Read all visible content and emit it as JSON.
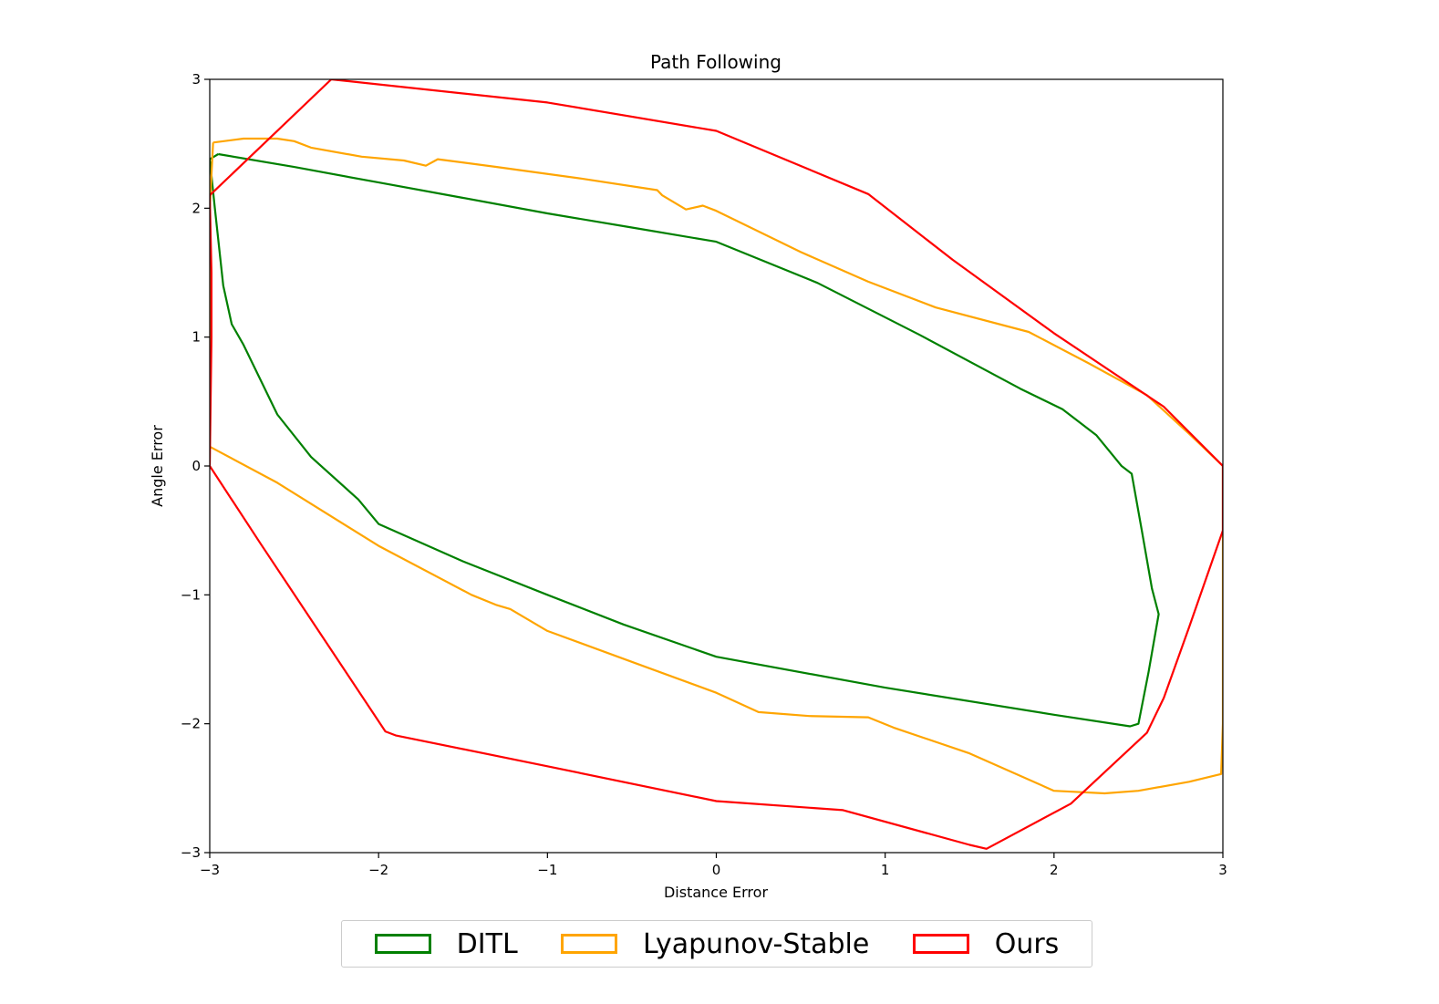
{
  "chart_data": {
    "type": "line",
    "title": "Path Following",
    "xlabel": "Distance Error",
    "ylabel": "Angle Error",
    "xlim": [
      -3,
      3
    ],
    "ylim": [
      -3,
      3
    ],
    "xticks": [
      -3,
      -2,
      -1,
      0,
      1,
      2,
      3
    ],
    "yticks": [
      -3,
      -2,
      -1,
      0,
      1,
      2,
      3
    ],
    "xtick_labels": [
      "−3",
      "−2",
      "−1",
      "0",
      "1",
      "2",
      "3"
    ],
    "ytick_labels": [
      "−3",
      "−2",
      "−1",
      "0",
      "1",
      "2",
      "3"
    ],
    "grid": false,
    "legend_position": "bottom-center",
    "series": [
      {
        "name": "DITL",
        "color": "#008000",
        "points": [
          [
            -2.95,
            2.42
          ],
          [
            -2.5,
            2.32
          ],
          [
            -2.0,
            2.2
          ],
          [
            -1.5,
            2.08
          ],
          [
            -1.0,
            1.96
          ],
          [
            -0.5,
            1.85
          ],
          [
            0.0,
            1.74
          ],
          [
            0.6,
            1.42
          ],
          [
            1.2,
            1.02
          ],
          [
            1.8,
            0.6
          ],
          [
            2.05,
            0.44
          ],
          [
            2.25,
            0.24
          ],
          [
            2.4,
            0.0
          ],
          [
            2.46,
            -0.06
          ],
          [
            2.52,
            -0.5
          ],
          [
            2.58,
            -0.95
          ],
          [
            2.62,
            -1.15
          ],
          [
            2.56,
            -1.6
          ],
          [
            2.5,
            -2.0
          ],
          [
            2.45,
            -2.02
          ],
          [
            2.0,
            -1.93
          ],
          [
            1.0,
            -1.72
          ],
          [
            0.0,
            -1.48
          ],
          [
            -0.55,
            -1.23
          ],
          [
            -1.0,
            -1.0
          ],
          [
            -1.5,
            -0.74
          ],
          [
            -2.0,
            -0.45
          ],
          [
            -2.12,
            -0.26
          ],
          [
            -2.4,
            0.07
          ],
          [
            -2.6,
            0.4
          ],
          [
            -2.8,
            0.94
          ],
          [
            -2.87,
            1.1
          ],
          [
            -2.92,
            1.4
          ],
          [
            -2.97,
            2.0
          ],
          [
            -3.0,
            2.38
          ],
          [
            -2.95,
            2.42
          ]
        ]
      },
      {
        "name": "Lyapunov-Stable",
        "color": "#ffa500",
        "points": [
          [
            -2.98,
            2.51
          ],
          [
            -2.8,
            2.54
          ],
          [
            -2.6,
            2.54
          ],
          [
            -2.5,
            2.52
          ],
          [
            -2.4,
            2.47
          ],
          [
            -2.1,
            2.4
          ],
          [
            -1.85,
            2.37
          ],
          [
            -1.72,
            2.33
          ],
          [
            -1.65,
            2.38
          ],
          [
            -1.3,
            2.32
          ],
          [
            -0.8,
            2.23
          ],
          [
            -0.35,
            2.14
          ],
          [
            -0.32,
            2.1
          ],
          [
            -0.18,
            1.99
          ],
          [
            -0.08,
            2.02
          ],
          [
            0.0,
            1.98
          ],
          [
            0.5,
            1.66
          ],
          [
            0.9,
            1.43
          ],
          [
            1.3,
            1.23
          ],
          [
            1.85,
            1.04
          ],
          [
            2.2,
            0.8
          ],
          [
            2.55,
            0.55
          ],
          [
            2.8,
            0.25
          ],
          [
            3.0,
            0.0
          ],
          [
            3.0,
            -0.5
          ],
          [
            3.0,
            -1.0
          ],
          [
            3.0,
            -1.5
          ],
          [
            3.0,
            -2.0
          ],
          [
            2.99,
            -2.39
          ],
          [
            2.8,
            -2.45
          ],
          [
            2.5,
            -2.52
          ],
          [
            2.3,
            -2.54
          ],
          [
            2.0,
            -2.52
          ],
          [
            1.5,
            -2.23
          ],
          [
            1.05,
            -2.03
          ],
          [
            0.9,
            -1.95
          ],
          [
            0.55,
            -1.94
          ],
          [
            0.25,
            -1.91
          ],
          [
            0.0,
            -1.76
          ],
          [
            -0.5,
            -1.52
          ],
          [
            -1.0,
            -1.28
          ],
          [
            -1.22,
            -1.11
          ],
          [
            -1.3,
            -1.08
          ],
          [
            -1.45,
            -1.0
          ],
          [
            -2.0,
            -0.62
          ],
          [
            -2.6,
            -0.13
          ],
          [
            -3.0,
            0.15
          ],
          [
            -3.0,
            0.5
          ],
          [
            -3.0,
            1.0
          ],
          [
            -3.0,
            1.5
          ],
          [
            -3.0,
            2.0
          ],
          [
            -2.98,
            2.51
          ]
        ]
      },
      {
        "name": "Ours",
        "color": "#ff0000",
        "points": [
          [
            -2.28,
            3.0
          ],
          [
            -1.0,
            2.82
          ],
          [
            0.0,
            2.6
          ],
          [
            0.9,
            2.11
          ],
          [
            1.4,
            1.6
          ],
          [
            2.0,
            1.03
          ],
          [
            2.65,
            0.46
          ],
          [
            3.0,
            0.0
          ],
          [
            3.0,
            -0.5
          ],
          [
            2.8,
            -1.25
          ],
          [
            2.65,
            -1.8
          ],
          [
            2.55,
            -2.07
          ],
          [
            2.1,
            -2.62
          ],
          [
            1.6,
            -2.97
          ],
          [
            1.5,
            -2.94
          ],
          [
            0.75,
            -2.67
          ],
          [
            0.0,
            -2.6
          ],
          [
            -1.0,
            -2.33
          ],
          [
            -1.9,
            -2.09
          ],
          [
            -1.96,
            -2.06
          ],
          [
            -2.7,
            -0.6
          ],
          [
            -3.0,
            0.0
          ],
          [
            -2.99,
            1.0
          ],
          [
            -2.99,
            1.5
          ],
          [
            -3.0,
            2.1
          ],
          [
            -2.28,
            3.0
          ]
        ]
      }
    ]
  }
}
